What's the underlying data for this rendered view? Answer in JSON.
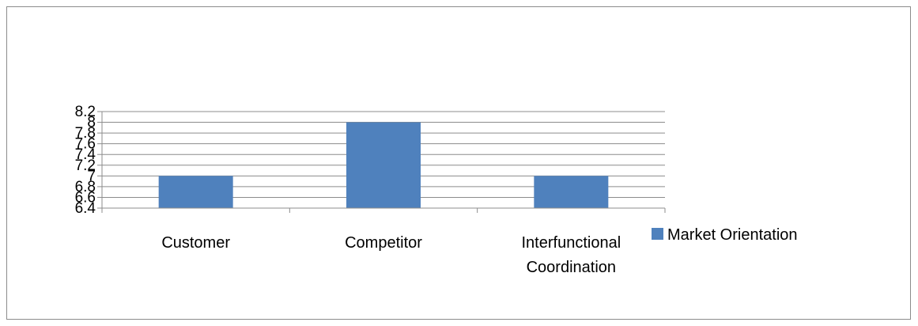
{
  "chart_data": {
    "type": "bar",
    "title": "",
    "xlabel": "",
    "ylabel": "",
    "categories": [
      "Customer",
      "Competitor",
      "Interfunctional Coordination"
    ],
    "category_lines": [
      [
        "Customer"
      ],
      [
        "Competitor"
      ],
      [
        "Interfunctional",
        "Coordination"
      ]
    ],
    "series": [
      {
        "name": "Market Orientation",
        "color": "#4f81bd",
        "values": [
          7,
          8,
          7
        ]
      }
    ],
    "ylim": [
      6.4,
      8.2
    ],
    "yticks": [
      "6.4",
      "6.6",
      "6.8",
      "7",
      "7.2",
      "7.4",
      "7.6",
      "7.8",
      "8",
      "8.2"
    ],
    "grid": true,
    "legend": "right"
  }
}
